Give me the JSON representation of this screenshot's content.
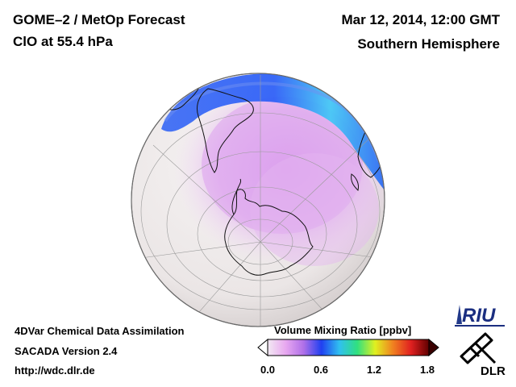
{
  "header": {
    "title_line1": "GOME–2 / MetOp Forecast",
    "title_line2": "ClO at 55.4 hPa",
    "date": "Mar 12, 2014, 12:00 GMT",
    "region": "Southern Hemisphere"
  },
  "footer": {
    "line1": "4DVar Chemical Data Assimilation",
    "line2": "SACADA Version 2.4",
    "line3": "http://wdc.dlr.de"
  },
  "colorbar": {
    "title": "Volume Mixing Ratio [ppbv]",
    "ticks": [
      "0.0",
      "0.6",
      "1.2",
      "1.8"
    ],
    "range": [
      0.0,
      1.8
    ],
    "colors": [
      "#f2e9f2",
      "#e8a8f0",
      "#b070e8",
      "#2040f0",
      "#30c0f0",
      "#30e080",
      "#e0f020",
      "#f08020",
      "#e02020",
      "#600000"
    ]
  },
  "logos": {
    "riu": "RIU",
    "dlr": "DLR"
  }
}
